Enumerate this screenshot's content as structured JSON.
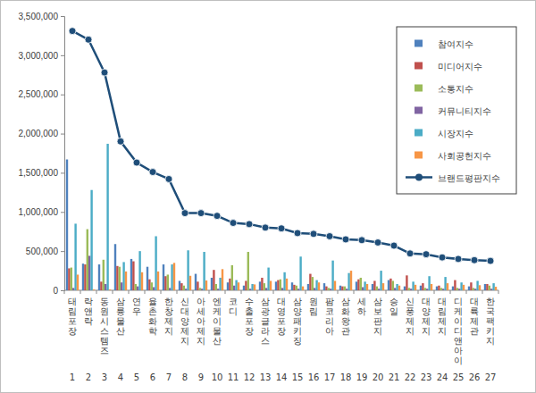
{
  "chart_data": {
    "type": "bar",
    "categories": [
      "태림포장",
      "락앤락",
      "동원시스템즈",
      "삼륭물산",
      "연우",
      "율촌화학",
      "한창제지",
      "신대양제지",
      "아세아제지",
      "엔케이물산",
      "코디",
      "수출포장",
      "삼광글라스",
      "대영포장",
      "삼양패키징",
      "원림",
      "팜코리아",
      "삼화왕관",
      "세하",
      "삼보판지",
      "승일",
      "신풍제지",
      "대양제지",
      "대림제지",
      "디케이디앤아이",
      "대륙제관",
      "한국팩키지"
    ],
    "ranks": [
      1,
      2,
      3,
      4,
      5,
      6,
      7,
      8,
      9,
      10,
      11,
      12,
      13,
      14,
      15,
      16,
      17,
      18,
      19,
      20,
      21,
      22,
      23,
      24,
      25,
      26,
      27
    ],
    "series": [
      {
        "name": "참여지수",
        "color": "#4f81bd",
        "values": [
          1670000,
          340000,
          330000,
          590000,
          400000,
          300000,
          330000,
          120000,
          210000,
          160000,
          100000,
          60000,
          110000,
          110000,
          100000,
          80000,
          90000,
          60000,
          110000,
          80000,
          130000,
          50000,
          60000,
          50000,
          50000,
          50000,
          80000
        ]
      },
      {
        "name": "미디어지수",
        "color": "#c0504d",
        "values": [
          280000,
          330000,
          110000,
          310000,
          370000,
          140000,
          180000,
          90000,
          110000,
          260000,
          150000,
          120000,
          160000,
          130000,
          70000,
          210000,
          50000,
          50000,
          140000,
          120000,
          150000,
          190000,
          90000,
          60000,
          130000,
          100000,
          80000
        ]
      },
      {
        "name": "소통지수",
        "color": "#9bbb59",
        "values": [
          290000,
          780000,
          390000,
          300000,
          80000,
          100000,
          200000,
          60000,
          30000,
          80000,
          320000,
          490000,
          90000,
          140000,
          60000,
          170000,
          30000,
          50000,
          160000,
          50000,
          120000,
          30000,
          30000,
          30000,
          30000,
          30000,
          60000
        ]
      },
      {
        "name": "커뮤니티지수",
        "color": "#8064a2",
        "values": [
          30000,
          440000,
          80000,
          100000,
          50000,
          40000,
          30000,
          20000,
          20000,
          20000,
          60000,
          20000,
          30000,
          30000,
          20000,
          30000,
          20000,
          20000,
          40000,
          20000,
          30000,
          20000,
          20000,
          20000,
          20000,
          20000,
          20000
        ]
      },
      {
        "name": "시장지수",
        "color": "#4bacc6",
        "values": [
          850000,
          1280000,
          1870000,
          360000,
          500000,
          690000,
          330000,
          510000,
          490000,
          160000,
          130000,
          80000,
          290000,
          230000,
          430000,
          130000,
          380000,
          220000,
          110000,
          250000,
          80000,
          110000,
          180000,
          170000,
          100000,
          120000,
          90000
        ]
      },
      {
        "name": "사회공헌지수",
        "color": "#f79646",
        "values": [
          200000,
          10000,
          10000,
          240000,
          230000,
          240000,
          350000,
          185000,
          125000,
          270000,
          100000,
          75000,
          120000,
          150000,
          50000,
          100000,
          120000,
          250000,
          80000,
          90000,
          60000,
          70000,
          80000,
          90000,
          70000,
          65000,
          45000
        ]
      },
      {
        "name": "브랜드평판지수",
        "color": "#1f4e79",
        "type": "line",
        "marker": "circle",
        "values": [
          3310000,
          3200000,
          2780000,
          1900000,
          1630000,
          1510000,
          1420000,
          985000,
          985000,
          950000,
          860000,
          845000,
          800000,
          790000,
          730000,
          720000,
          690000,
          650000,
          640000,
          610000,
          570000,
          470000,
          460000,
          420000,
          400000,
          385000,
          375000
        ]
      }
    ],
    "ylim": [
      0,
      3500000
    ],
    "yticks": [
      0,
      {
        "value": 500000,
        "label": "500,000"
      },
      {
        "value": 1000000,
        "label": "1,000,000"
      },
      {
        "value": 1500000,
        "label": "1,500,000"
      },
      {
        "value": 2000000,
        "label": "2,000,000"
      },
      {
        "value": 2500000,
        "label": "2,500,000"
      },
      {
        "value": 3000000,
        "label": "3,000,000"
      },
      {
        "value": 3500000,
        "label": "3,500,000"
      }
    ],
    "grid": false,
    "legend": "top-right"
  }
}
